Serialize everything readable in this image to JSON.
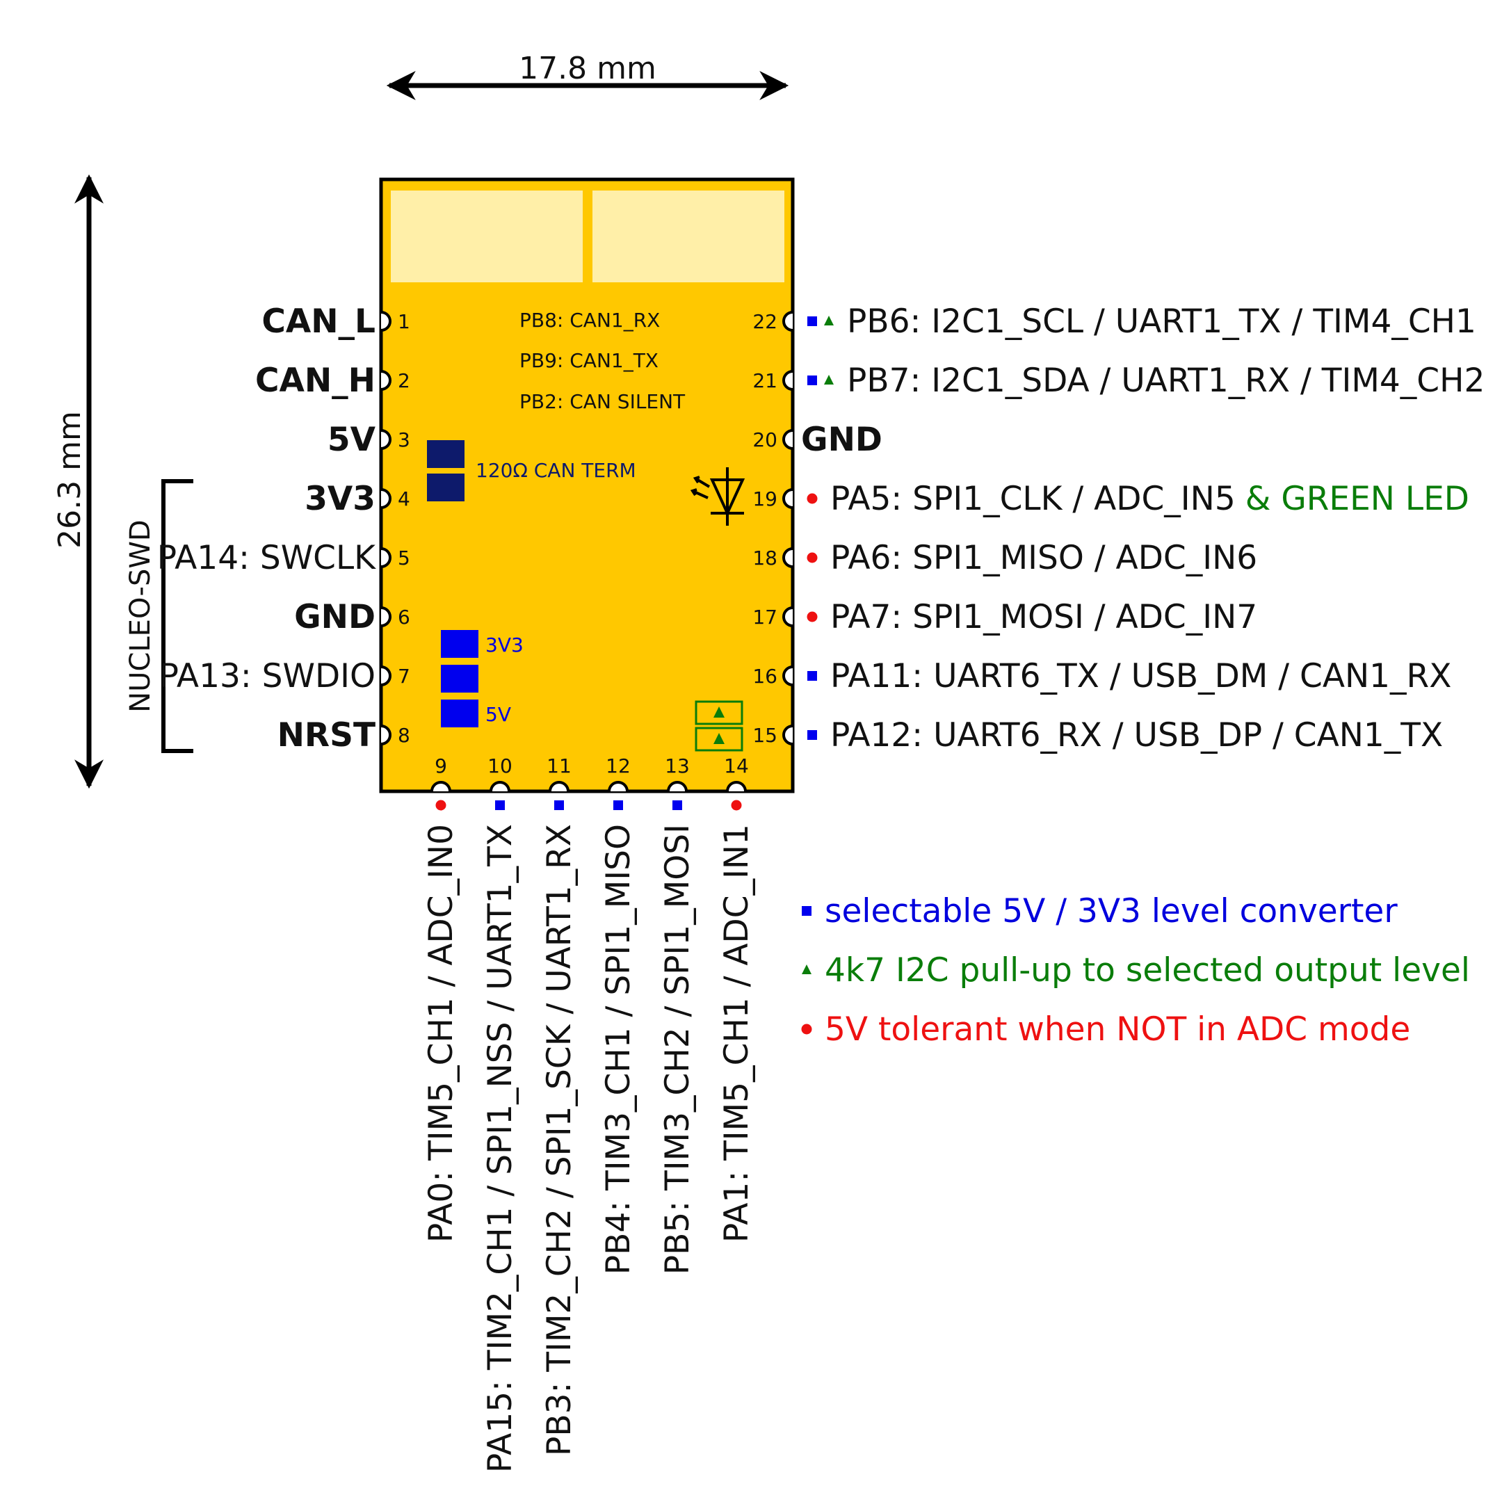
{
  "dimensions": {
    "width": "17.8 mm",
    "height": "26.3 mm"
  },
  "colors": {
    "board": "#FFC800",
    "board_window": "#FFEFA8",
    "jumper_dark": "#0D1A6B",
    "jumper_blue": "#0000EE",
    "level_converter": "#0000EE",
    "i2c_pullup": "#0A7D0A",
    "five_volt_tolerant": "#EE1111"
  },
  "board_text": {
    "pb8": "PB8: CAN1_RX",
    "pb9": "PB9: CAN1_TX",
    "pb2": "PB2: CAN SILENT",
    "can_term": "120Ω CAN TERM",
    "jumper_3v3": "3V3",
    "jumper_5v": "5V"
  },
  "swd_group": "NUCLEO-SWD",
  "left_pins": [
    {
      "num": "1",
      "label": "CAN_L",
      "bold": true
    },
    {
      "num": "2",
      "label": "CAN_H",
      "bold": true
    },
    {
      "num": "3",
      "label": "5V",
      "bold": true
    },
    {
      "num": "4",
      "label": "3V3",
      "bold": true
    },
    {
      "num": "5",
      "label": "PA14: SWCLK",
      "bold": false
    },
    {
      "num": "6",
      "label": "GND",
      "bold": true
    },
    {
      "num": "7",
      "label": "PA13: SWDIO",
      "bold": false
    },
    {
      "num": "8",
      "label": "NRST",
      "bold": true
    }
  ],
  "right_pins": [
    {
      "num": "22",
      "label": "PB6: I2C1_SCL / UART1_TX / TIM4_CH1",
      "markers": [
        "square",
        "triangle"
      ]
    },
    {
      "num": "21",
      "label": "PB7: I2C1_SDA / UART1_RX / TIM4_CH2",
      "markers": [
        "square",
        "triangle"
      ]
    },
    {
      "num": "20",
      "label": "GND",
      "markers": [],
      "bold": true
    },
    {
      "num": "19",
      "label": "PA5: SPI1_CLK / ADC_IN5",
      "extra": "& GREEN LED",
      "markers": [
        "circle"
      ]
    },
    {
      "num": "18",
      "label": "PA6: SPI1_MISO / ADC_IN6",
      "markers": [
        "circle"
      ]
    },
    {
      "num": "17",
      "label": "PA7: SPI1_MOSI / ADC_IN7",
      "markers": [
        "circle"
      ]
    },
    {
      "num": "16",
      "label": "PA11: UART6_TX / USB_DM / CAN1_RX",
      "markers": [
        "square"
      ]
    },
    {
      "num": "15",
      "label": "PA12: UART6_RX / USB_DP / CAN1_TX",
      "markers": [
        "square"
      ]
    }
  ],
  "bottom_pins": [
    {
      "num": "9",
      "label": "PA0: TIM5_CH1 / ADC_IN0",
      "marker": "circle"
    },
    {
      "num": "10",
      "label": "PA15: TIM2_CH1 / SPI1_NSS / UART1_TX",
      "marker": "square"
    },
    {
      "num": "11",
      "label": "PB3: TIM2_CH2 / SPI1_SCK / UART1_RX",
      "marker": "square"
    },
    {
      "num": "12",
      "label": "PB4: TIM3_CH1 / SPI1_MISO",
      "marker": "square"
    },
    {
      "num": "13",
      "label": "PB5: TIM3_CH2 / SPI1_MOSI",
      "marker": "square"
    },
    {
      "num": "14",
      "label": "PA1: TIM5_CH1 / ADC_IN1",
      "marker": "circle"
    }
  ],
  "legend": [
    {
      "marker": "square",
      "text": "selectable 5V / 3V3 level converter"
    },
    {
      "marker": "triangle",
      "text": "4k7 I2C pull-up to selected output level"
    },
    {
      "marker": "circle",
      "text": "5V tolerant when NOT in ADC mode"
    }
  ]
}
